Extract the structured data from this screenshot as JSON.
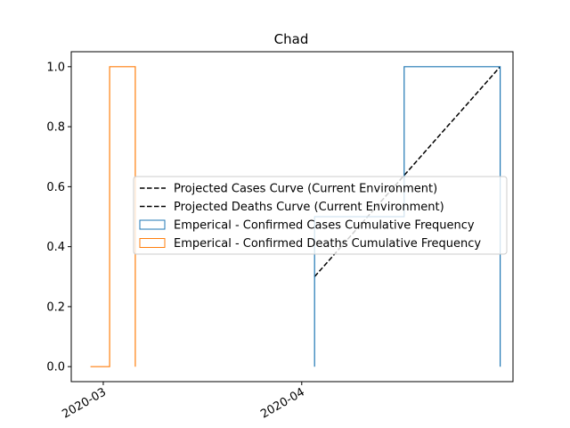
{
  "chart_data": {
    "type": "line",
    "title": "Chad",
    "xlabel": "",
    "ylabel": "",
    "x_axis": {
      "type": "date",
      "range": [
        "2020-02-25",
        "2020-05-04"
      ],
      "ticks": [
        "2020-03-01",
        "2020-04-01"
      ],
      "tick_labels": [
        "2020-03",
        "2020-04"
      ],
      "tick_rotation": 30
    },
    "y_axis": {
      "range": [
        0,
        1.0
      ],
      "ticks": [
        0.0,
        0.2,
        0.4,
        0.6,
        0.8,
        1.0
      ],
      "tick_labels": [
        "0.0",
        "0.2",
        "0.4",
        "0.6",
        "0.8",
        "1.0"
      ]
    },
    "grid": false,
    "legend_position": "center-right",
    "series": [
      {
        "name": "Projected Cases Curve (Current Environment)",
        "kind": "line",
        "style": "dashed",
        "color": "#000000",
        "points": [
          {
            "x": "2020-04-03",
            "y": 0.3
          },
          {
            "x": "2020-05-02",
            "y": 1.0
          }
        ]
      },
      {
        "name": "Projected Deaths Curve (Current Environment)",
        "kind": "line",
        "style": "dashed",
        "color": "#000000",
        "points": []
      },
      {
        "name": "Emperical - Confirmed Cases Cumulative Frequency",
        "kind": "step",
        "color": "#1f77b4",
        "points": [
          {
            "x": "2020-04-03",
            "y": 0.0
          },
          {
            "x": "2020-04-03",
            "y": 0.5
          },
          {
            "x": "2020-04-17",
            "y": 0.5
          },
          {
            "x": "2020-04-17",
            "y": 1.0
          },
          {
            "x": "2020-05-02",
            "y": 1.0
          },
          {
            "x": "2020-05-02",
            "y": 0.0
          }
        ]
      },
      {
        "name": "Emperical - Confirmed Deaths Cumulative Frequency",
        "kind": "step",
        "color": "#ff7f0e",
        "points": [
          {
            "x": "2020-02-28",
            "y": 0.0
          },
          {
            "x": "2020-03-02",
            "y": 0.0
          },
          {
            "x": "2020-03-02",
            "y": 1.0
          },
          {
            "x": "2020-03-06",
            "y": 1.0
          },
          {
            "x": "2020-03-06",
            "y": 0.0
          }
        ]
      }
    ]
  }
}
